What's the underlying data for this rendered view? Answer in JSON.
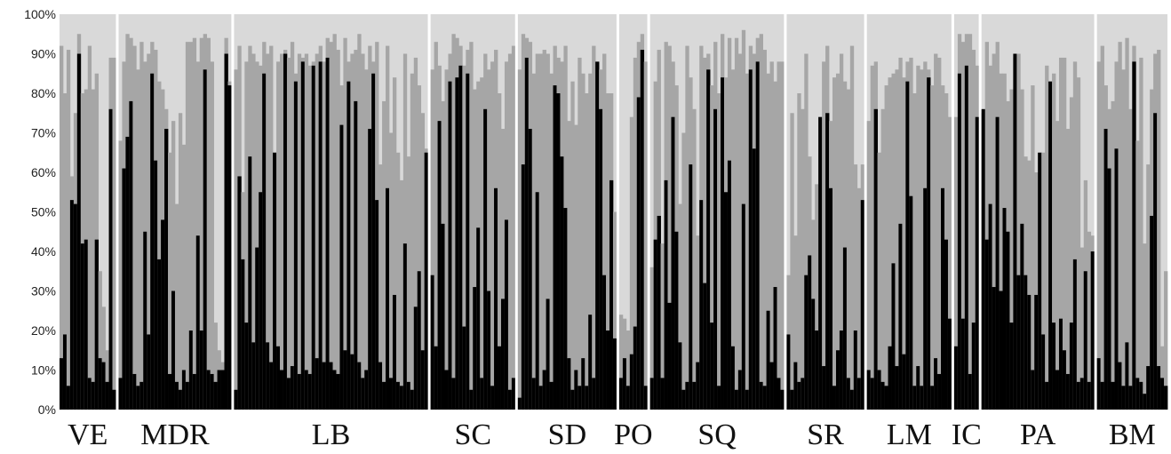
{
  "chart_data": {
    "type": "bar",
    "stacked": true,
    "y_range": [
      0,
      100
    ],
    "y_ticks": [
      "0%",
      "10%",
      "20%",
      "30%",
      "40%",
      "50%",
      "60%",
      "70%",
      "80%",
      "90%",
      "100%"
    ],
    "grid": false,
    "colors": {
      "black": "#000000",
      "gray": "#a6a6a6",
      "light": "#d9d9d9"
    },
    "populations": [
      {
        "label": "VE",
        "k_black": [
          13,
          19,
          6,
          53,
          52,
          90,
          42,
          43,
          8,
          7,
          43,
          13,
          12,
          7,
          76,
          5
        ],
        "k_gray": [
          92,
          80,
          91,
          59,
          75,
          95,
          80,
          81,
          92,
          81,
          85,
          35,
          26,
          15,
          89,
          89
        ]
      },
      {
        "label": "MDR",
        "k_black": [
          8,
          61,
          69,
          78,
          9,
          6,
          7,
          45,
          19,
          85,
          63,
          38,
          48,
          71,
          9,
          30,
          7,
          5,
          10,
          7,
          20,
          9,
          44,
          20,
          86,
          10,
          9,
          7,
          10,
          10,
          90,
          82
        ],
        "k_gray": [
          68,
          88,
          95,
          94,
          92,
          86,
          93,
          88,
          90,
          93,
          91,
          83,
          81,
          76,
          65,
          73,
          52,
          75,
          67,
          93,
          93,
          94,
          88,
          94,
          95,
          94,
          88,
          22,
          15,
          12,
          94,
          83
        ]
      },
      {
        "label": "LB",
        "k_black": [
          5,
          59,
          38,
          22,
          64,
          17,
          41,
          55,
          85,
          17,
          12,
          65,
          16,
          10,
          90,
          8,
          11,
          83,
          9,
          88,
          10,
          9,
          87,
          13,
          88,
          12,
          89,
          12,
          10,
          9,
          72,
          15,
          83,
          14,
          78,
          12,
          8,
          10,
          71,
          85,
          53,
          12,
          7,
          56,
          8,
          29,
          7,
          6,
          42,
          7,
          5,
          26,
          35,
          15,
          65
        ],
        "k_gray": [
          86,
          92,
          55,
          88,
          92,
          90,
          88,
          87,
          93,
          90,
          92,
          56,
          88,
          90,
          91,
          89,
          93,
          85,
          90,
          89,
          90,
          87,
          88,
          90,
          92,
          88,
          94,
          93,
          95,
          91,
          82,
          94,
          88,
          90,
          91,
          95,
          90,
          86,
          92,
          88,
          93,
          62,
          78,
          92,
          70,
          84,
          65,
          58,
          90,
          64,
          85,
          89,
          82,
          75,
          66
        ]
      },
      {
        "label": "SC",
        "k_black": [
          34,
          16,
          73,
          47,
          10,
          83,
          8,
          84,
          87,
          21,
          85,
          5,
          31,
          46,
          8,
          76,
          30,
          6,
          56,
          16,
          28,
          48,
          5,
          8
        ],
        "k_gray": [
          86,
          93,
          87,
          78,
          86,
          90,
          95,
          94,
          92,
          87,
          91,
          93,
          81,
          83,
          84,
          90,
          86,
          88,
          91,
          80,
          71,
          88,
          90,
          92
        ]
      },
      {
        "label": "SD",
        "k_black": [
          3,
          62,
          89,
          71,
          8,
          55,
          6,
          10,
          28,
          7,
          82,
          80,
          64,
          51,
          13,
          5,
          10,
          6,
          13,
          6,
          24,
          8,
          88,
          76,
          34,
          20,
          58,
          18
        ],
        "k_gray": [
          86,
          95,
          94,
          93,
          85,
          90,
          90,
          91,
          90,
          85,
          92,
          89,
          88,
          92,
          73,
          83,
          72,
          89,
          85,
          80,
          85,
          92,
          87,
          86,
          90,
          80,
          80,
          50
        ]
      },
      {
        "label": "PO",
        "k_black": [
          8,
          13,
          6,
          14,
          21,
          79,
          91,
          6
        ],
        "k_gray": [
          24,
          23,
          20,
          74,
          89,
          93,
          95,
          88
        ]
      },
      {
        "label": "SQ",
        "k_black": [
          8,
          43,
          49,
          8,
          58,
          27,
          74,
          45,
          17,
          5,
          7,
          62,
          7,
          12,
          53,
          32,
          86,
          22,
          76,
          6,
          84,
          55,
          63,
          16,
          5,
          10,
          52,
          5,
          86,
          66,
          88,
          7,
          6,
          25,
          12,
          31,
          8,
          5
        ],
        "k_gray": [
          36,
          83,
          91,
          42,
          93,
          92,
          88,
          82,
          52,
          70,
          92,
          84,
          76,
          44,
          92,
          89,
          90,
          82,
          93,
          80,
          95,
          84,
          94,
          86,
          94,
          90,
          96,
          85,
          92,
          90,
          94,
          95,
          91,
          85,
          88,
          83,
          88,
          88
        ]
      },
      {
        "label": "SR",
        "k_black": [
          19,
          5,
          12,
          7,
          8,
          34,
          39,
          28,
          20,
          74,
          11,
          75,
          56,
          6,
          15,
          20,
          41,
          8,
          5,
          20,
          8,
          53
        ],
        "k_gray": [
          34,
          75,
          44,
          80,
          76,
          90,
          64,
          48,
          57,
          74,
          88,
          92,
          73,
          84,
          85,
          90,
          83,
          81,
          92,
          62,
          56,
          62
        ]
      },
      {
        "label": "LM",
        "k_black": [
          10,
          8,
          76,
          10,
          7,
          6,
          16,
          37,
          11,
          47,
          14,
          83,
          54,
          6,
          11,
          6,
          56,
          84,
          6,
          13,
          9,
          56,
          43,
          23
        ],
        "k_gray": [
          73,
          87,
          88,
          65,
          76,
          82,
          84,
          85,
          86,
          89,
          84,
          88,
          89,
          80,
          87,
          86,
          88,
          86,
          82,
          90,
          89,
          82,
          80,
          74
        ]
      },
      {
        "label": "IC",
        "k_black": [
          16,
          85,
          23,
          87,
          9,
          22,
          74
        ],
        "k_gray": [
          74,
          95,
          93,
          95,
          95,
          91,
          87
        ]
      },
      {
        "label": "PA",
        "k_black": [
          76,
          43,
          52,
          31,
          74,
          30,
          51,
          45,
          22,
          90,
          34,
          47,
          34,
          29,
          10,
          29,
          65,
          19,
          7,
          83,
          22,
          10,
          23,
          15,
          9,
          22,
          38,
          7,
          8,
          35,
          7,
          40
        ],
        "k_gray": [
          75,
          93,
          87,
          90,
          93,
          85,
          85,
          78,
          81,
          89,
          90,
          81,
          64,
          63,
          82,
          60,
          59,
          65,
          87,
          81,
          85,
          73,
          89,
          89,
          71,
          79,
          88,
          84,
          41,
          58,
          45,
          44
        ]
      },
      {
        "label": "BM",
        "k_black": [
          13,
          7,
          71,
          61,
          7,
          66,
          12,
          6,
          17,
          6,
          88,
          8,
          7,
          4,
          11,
          49,
          75,
          11,
          8,
          6
        ],
        "k_gray": [
          88,
          92,
          82,
          76,
          78,
          88,
          93,
          86,
          94,
          76,
          92,
          68,
          89,
          42,
          62,
          81,
          90,
          91,
          16,
          35
        ]
      }
    ]
  }
}
